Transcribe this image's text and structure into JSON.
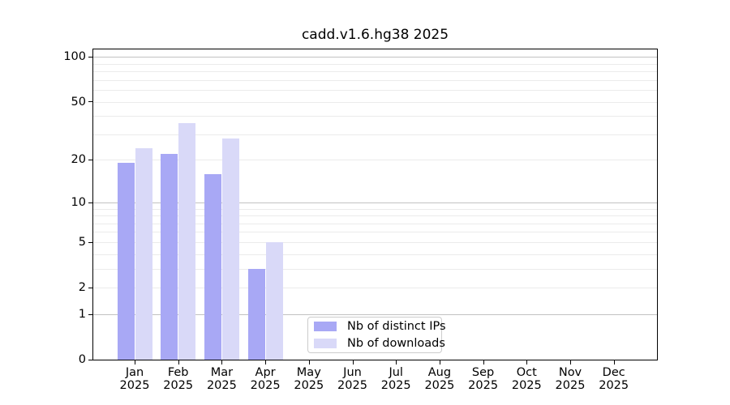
{
  "title": "cadd.v1.6.hg38 2025",
  "chart_data": {
    "type": "bar",
    "title": "cadd.v1.6.hg38 2025",
    "categories": [
      "Jan 2025",
      "Feb 2025",
      "Mar 2025",
      "Apr 2025",
      "May 2025",
      "Jun 2025",
      "Jul 2025",
      "Aug 2025",
      "Sep 2025",
      "Oct 2025",
      "Nov 2025",
      "Dec 2025"
    ],
    "series": [
      {
        "name": "Nb of distinct IPs",
        "color": "#a8a8f5",
        "values": [
          19,
          22,
          16,
          3,
          0,
          0,
          0,
          0,
          0,
          0,
          0,
          0
        ]
      },
      {
        "name": "Nb of downloads",
        "color": "#d9d9f8",
        "values": [
          24,
          36,
          28,
          5,
          0,
          0,
          0,
          0,
          0,
          0,
          0,
          0
        ]
      }
    ],
    "xlabel": "",
    "ylabel": "",
    "scale": "log1p",
    "ylim": [
      0,
      112
    ],
    "ylim_max": 112,
    "yticks": [
      0,
      1,
      2,
      5,
      10,
      20,
      50,
      100
    ],
    "minor_grid": [
      2,
      3,
      4,
      5,
      6,
      7,
      8,
      9,
      20,
      30,
      40,
      50,
      60,
      70,
      80,
      90
    ],
    "major_grid": [
      1,
      10,
      100
    ],
    "grid": true,
    "legend_position": "lower center",
    "style": {
      "minor_grid_color": "#ebebeb",
      "major_grid_color": "#c2c2c2",
      "axis_color": "#000000",
      "background": "#ffffff"
    }
  }
}
